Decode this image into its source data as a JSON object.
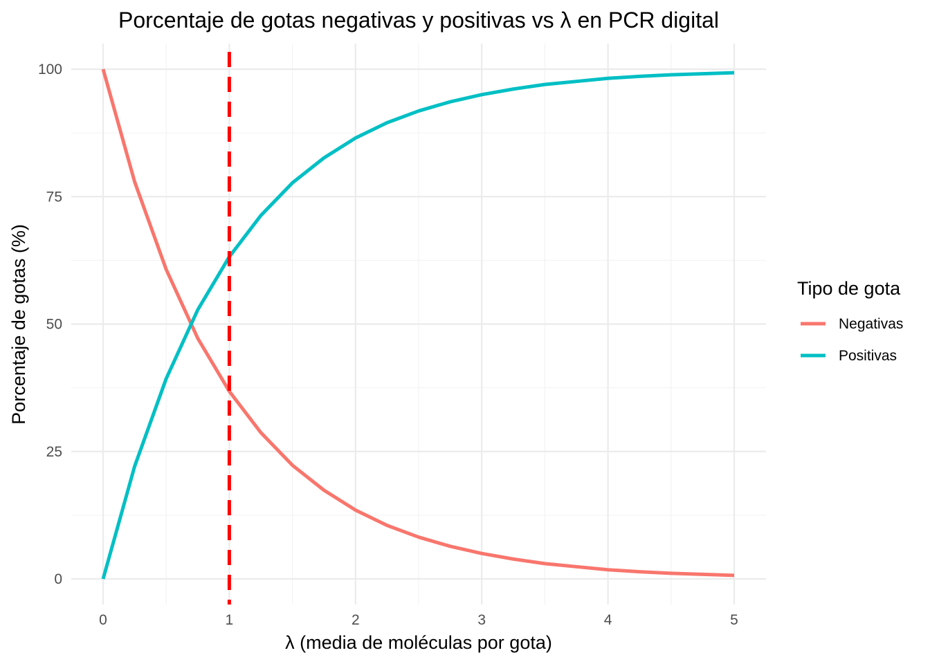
{
  "chart_data": {
    "type": "line",
    "title": "Porcentaje de gotas negativas y positivas vs λ en PCR digital",
    "xlabel": "λ (media de moléculas por gota)",
    "ylabel": "Porcentaje de gotas (%)",
    "xlim": [
      0,
      5
    ],
    "ylim": [
      0,
      100
    ],
    "x_ticks": [
      0,
      1,
      2,
      3,
      4,
      5
    ],
    "y_ticks": [
      0,
      25,
      50,
      75,
      100
    ],
    "grid": true,
    "legend": {
      "title": "Tipo de gota",
      "placement": "right"
    },
    "x": [
      0,
      0.25,
      0.5,
      0.75,
      1,
      1.25,
      1.5,
      1.75,
      2,
      2.25,
      2.5,
      2.75,
      3,
      3.25,
      3.5,
      3.75,
      4,
      4.25,
      4.5,
      4.75,
      5
    ],
    "series": [
      {
        "name": "Negativas",
        "color": "#F8766D",
        "values": [
          100,
          77.9,
          60.7,
          47.2,
          36.8,
          28.7,
          22.3,
          17.4,
          13.5,
          10.5,
          8.2,
          6.4,
          5.0,
          3.9,
          3.0,
          2.4,
          1.8,
          1.4,
          1.1,
          0.9,
          0.7
        ]
      },
      {
        "name": "Positivas",
        "color": "#00BFC4",
        "values": [
          0,
          22.1,
          39.3,
          52.8,
          63.2,
          71.3,
          77.7,
          82.6,
          86.5,
          89.5,
          91.8,
          93.6,
          95.0,
          96.1,
          97.0,
          97.6,
          98.2,
          98.6,
          98.9,
          99.1,
          99.3
        ]
      }
    ],
    "reference_line": {
      "axis": "x",
      "value": 1,
      "color": "#FF0000",
      "style": "dashed"
    }
  }
}
